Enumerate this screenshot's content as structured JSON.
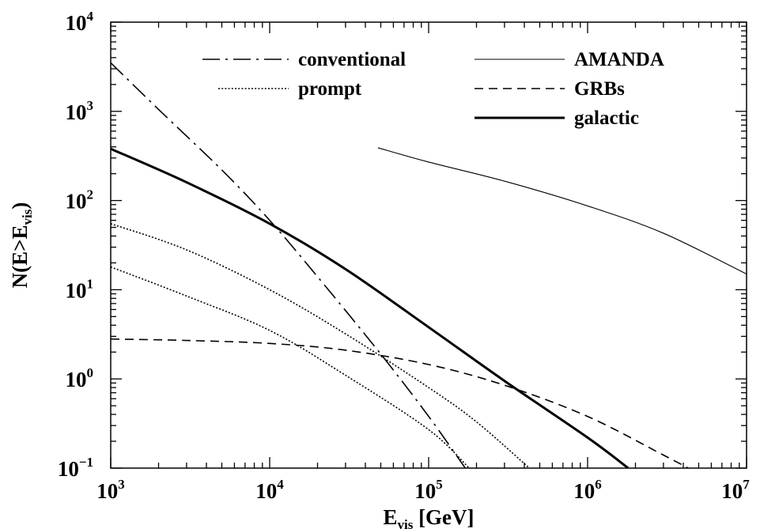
{
  "chart_data": {
    "type": "line",
    "x_scale": "log",
    "y_scale": "log",
    "xlim": [
      1000,
      10000000
    ],
    "ylim": [
      0.1,
      10000
    ],
    "xlabel": {
      "main": "E",
      "sub": "vis",
      "suffix": " [GeV]"
    },
    "ylabel": {
      "pre": "N(E>E",
      "sub": "vis",
      "post": ")"
    },
    "x_ticks": [
      {
        "value": 1000,
        "base": "10",
        "exp": "3"
      },
      {
        "value": 10000,
        "base": "10",
        "exp": "4"
      },
      {
        "value": 100000,
        "base": "10",
        "exp": "5"
      },
      {
        "value": 1000000,
        "base": "10",
        "exp": "6"
      },
      {
        "value": 10000000,
        "base": "10",
        "exp": "7"
      }
    ],
    "y_ticks": [
      {
        "value": 0.1,
        "base": "10",
        "exp": "−1"
      },
      {
        "value": 1,
        "base": "10",
        "exp": "0"
      },
      {
        "value": 10,
        "base": "10",
        "exp": "1"
      },
      {
        "value": 100,
        "base": "10",
        "exp": "2"
      },
      {
        "value": 1000,
        "base": "10",
        "exp": "3"
      },
      {
        "value": 10000,
        "base": "10",
        "exp": "4"
      }
    ],
    "grid": false,
    "legend_position": "top",
    "series": [
      {
        "name": "conventional",
        "style": "dashdot",
        "x": [
          1000,
          2000,
          5000,
          10000,
          20000,
          50000,
          100000,
          170000
        ],
        "y": [
          3500,
          1050,
          220,
          60,
          14,
          1.9,
          0.38,
          0.1
        ]
      },
      {
        "name": "prompt",
        "style": "dotted",
        "x": [
          1000,
          3000,
          10000,
          30000,
          100000,
          200000,
          430000
        ],
        "y": [
          55,
          28,
          10,
          3.2,
          0.8,
          0.33,
          0.1
        ]
      },
      {
        "style": "dotted",
        "x": [
          1000,
          3000,
          10000,
          30000,
          100000,
          180000
        ],
        "y": [
          18,
          8.5,
          3.5,
          1.1,
          0.27,
          0.1
        ]
      },
      {
        "name": "AMANDA",
        "style": "thin",
        "x": [
          48000,
          100000,
          300000,
          1000000,
          3000000,
          10000000
        ],
        "y": [
          390,
          270,
          165,
          87,
          43,
          15
        ]
      },
      {
        "name": "GRBs",
        "style": "dashed",
        "x": [
          1000,
          3000,
          10000,
          30000,
          100000,
          300000,
          1000000,
          3000000,
          4300000
        ],
        "y": [
          2.8,
          2.7,
          2.5,
          2.1,
          1.45,
          0.85,
          0.38,
          0.14,
          0.1
        ]
      },
      {
        "name": "galactic",
        "style": "thick",
        "x": [
          1000,
          3000,
          10000,
          30000,
          100000,
          300000,
          1000000,
          1800000
        ],
        "y": [
          380,
          160,
          55,
          17,
          3.8,
          0.95,
          0.22,
          0.1
        ]
      }
    ]
  }
}
